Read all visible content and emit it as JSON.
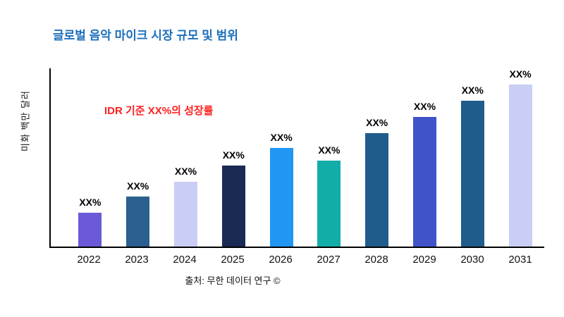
{
  "title": "글로벌 음악 마이크 시장 규모 및 범위",
  "annotation": "IDR 기준 XX%의 성장률",
  "source": "출처: 무한 데이터 연구 ©",
  "colors": {
    "title_text": "#1c6fbb",
    "annotation_text": "#ff2020",
    "axis": "#000000",
    "background": "#ffffff"
  },
  "chart_data": {
    "type": "bar",
    "title": "글로벌 음악 마이크 시장 규모 및 범위",
    "xlabel": "",
    "ylabel": "미화 백만 달러",
    "ylim": [
      0,
      110
    ],
    "grid": false,
    "legend": false,
    "categories": [
      "2022",
      "2023",
      "2024",
      "2025",
      "2026",
      "2027",
      "2028",
      "2029",
      "2030",
      "2031"
    ],
    "values": [
      21,
      31,
      40,
      50,
      61,
      53,
      70,
      80,
      90,
      100
    ],
    "bar_labels": [
      "XX%",
      "XX%",
      "XX%",
      "XX%",
      "XX%",
      "XX%",
      "XX%",
      "XX%",
      "XX%",
      "XX%"
    ],
    "bar_colors": [
      "#6a5ad8",
      "#2a5f8f",
      "#c9cef4",
      "#1b2a55",
      "#2196f3",
      "#12ada8",
      "#1f5c8b",
      "#4053c8",
      "#1f5c8b",
      "#c9cef4"
    ],
    "annotation": "IDR 기준 XX%의 성장률",
    "source_note": "출처: 무한 데이터 연구 ©"
  }
}
